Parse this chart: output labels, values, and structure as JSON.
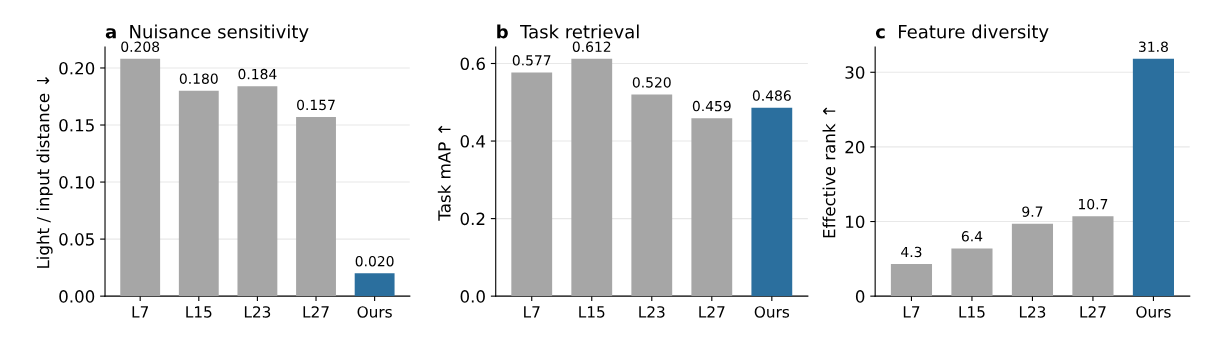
{
  "chart_data": [
    {
      "type": "bar",
      "title": "a  Nuisance sensitivity",
      "ylabel": "Light / input distance ↓",
      "categories": [
        "L7",
        "L15",
        "L23",
        "L27",
        "Ours"
      ],
      "values": [
        0.208,
        0.18,
        0.184,
        0.157,
        0.02
      ],
      "colors": [
        "#a6a6a6",
        "#a6a6a6",
        "#a6a6a6",
        "#a6a6a6",
        "#2b6f9e"
      ],
      "value_labels": [
        "0.208",
        "0.180",
        "0.184",
        "0.157",
        "0.020"
      ],
      "ylim": [
        0,
        0.2184
      ],
      "yticks": [
        {
          "value": 0,
          "label": "0.00"
        },
        {
          "value": 0.05,
          "label": "0.05"
        },
        {
          "value": 0.1,
          "label": "0.10"
        },
        {
          "value": 0.15,
          "label": "0.15"
        },
        {
          "value": 0.2,
          "label": "0.20"
        }
      ],
      "grid": "y",
      "legend": false
    },
    {
      "type": "bar",
      "title": "b  Task retrieval",
      "ylabel": "Task mAP ↑",
      "categories": [
        "L7",
        "L15",
        "L23",
        "L27",
        "Ours"
      ],
      "values": [
        0.577,
        0.612,
        0.52,
        0.459,
        0.486
      ],
      "colors": [
        "#a6a6a6",
        "#a6a6a6",
        "#a6a6a6",
        "#a6a6a6",
        "#2b6f9e"
      ],
      "value_labels": [
        "0.577",
        "0.612",
        "0.520",
        "0.459",
        "0.486"
      ],
      "ylim": [
        0,
        0.6426
      ],
      "yticks": [
        {
          "value": 0,
          "label": "0.0"
        },
        {
          "value": 0.2,
          "label": "0.2"
        },
        {
          "value": 0.4,
          "label": "0.4"
        },
        {
          "value": 0.6,
          "label": "0.6"
        }
      ],
      "grid": "y",
      "legend": false
    },
    {
      "type": "bar",
      "title": "c  Feature diversity",
      "ylabel": "Effective rank ↑",
      "categories": [
        "L7",
        "L15",
        "L23",
        "L27",
        "Ours"
      ],
      "values": [
        4.3,
        6.4,
        9.7,
        10.7,
        31.8
      ],
      "colors": [
        "#a6a6a6",
        "#a6a6a6",
        "#a6a6a6",
        "#a6a6a6",
        "#2b6f9e"
      ],
      "value_labels": [
        "4.3",
        "6.4",
        "9.7",
        "10.7",
        "31.8"
      ],
      "ylim": [
        0,
        33.39
      ],
      "yticks": [
        0,
        10,
        20,
        30
      ],
      "grid": "y",
      "legend": false
    }
  ]
}
